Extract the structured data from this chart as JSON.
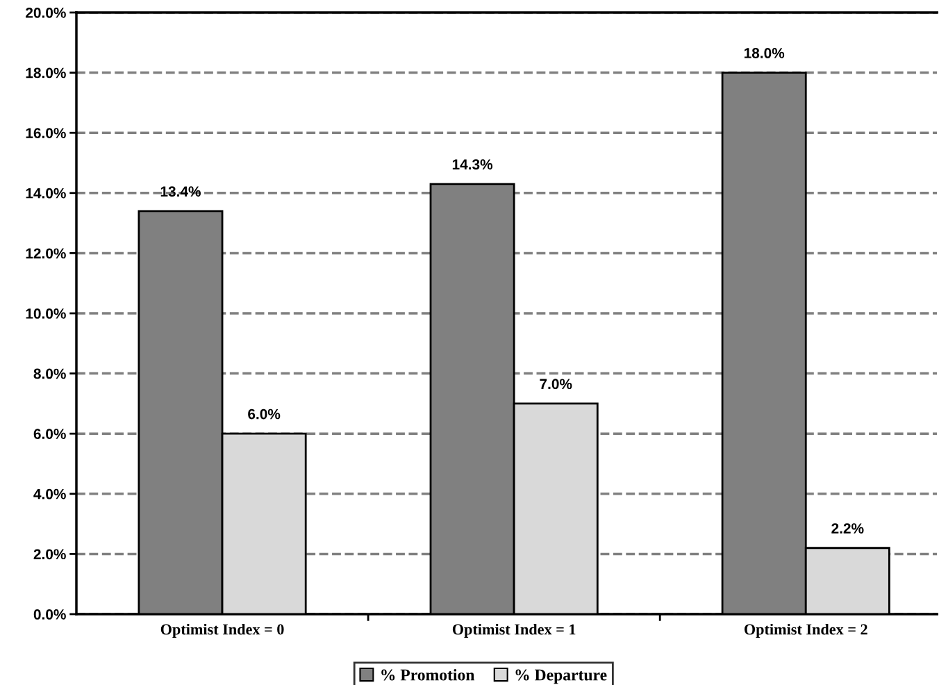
{
  "chart_data": {
    "type": "bar",
    "categories": [
      "Optimist Index = 0",
      "Optimist Index = 1",
      "Optimist Index = 2"
    ],
    "series": [
      {
        "name": "% Promotion",
        "color": "#808080",
        "values": [
          13.4,
          14.3,
          18.0
        ],
        "value_labels": [
          "13.4%",
          "14.3%",
          "18.0%"
        ]
      },
      {
        "name": "% Departure",
        "color": "#d9d9d9",
        "values": [
          6.0,
          7.0,
          2.2
        ],
        "value_labels": [
          "6.0%",
          "7.0%",
          "2.2%"
        ]
      }
    ],
    "ylim": [
      0,
      20
    ],
    "yticks": [
      {
        "value": 0,
        "label": "0.0%"
      },
      {
        "value": 2,
        "label": "2.0%"
      },
      {
        "value": 4,
        "label": "4.0%"
      },
      {
        "value": 6,
        "label": "6.0%"
      },
      {
        "value": 8,
        "label": "8.0%"
      },
      {
        "value": 10,
        "label": "10.0%"
      },
      {
        "value": 12,
        "label": "12.0%"
      },
      {
        "value": 14,
        "label": "14.0%"
      },
      {
        "value": 16,
        "label": "16.0%"
      },
      {
        "value": 18,
        "label": "18.0%"
      },
      {
        "value": 20,
        "label": "20.0%"
      }
    ],
    "grid": "y",
    "legend": "bottom",
    "line_style": "dashed"
  }
}
